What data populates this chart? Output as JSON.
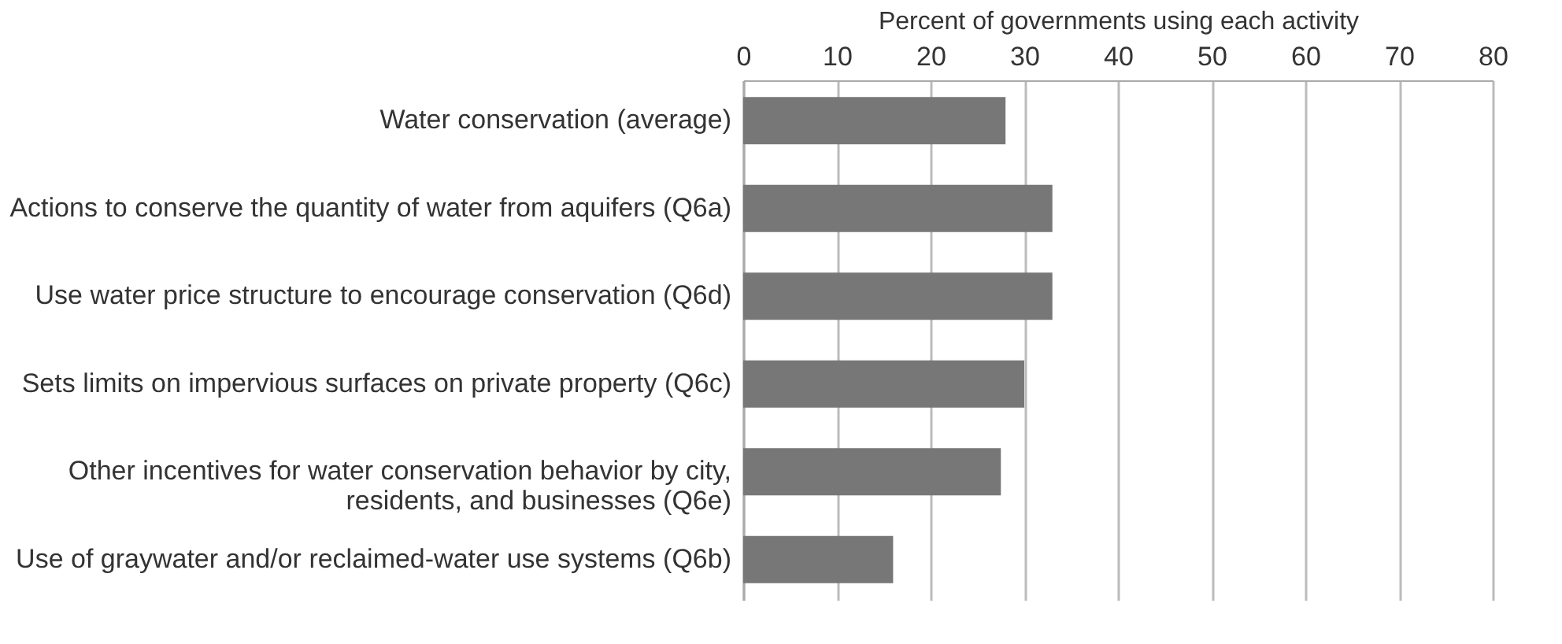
{
  "chart_data": {
    "type": "bar",
    "orientation": "horizontal",
    "xlabel": "Percent of governments using each activity",
    "categories": [
      "Water conservation (average)",
      "Actions to conserve the quantity of water from aquifers (Q6a)",
      "Use water price structure to encourage conservation (Q6d)",
      "Sets limits on impervious surfaces on private property (Q6c)",
      "Other incentives for water conservation behavior by city, residents, and businesses (Q6e)",
      "Use of graywater and/or reclaimed-water use systems (Q6b)"
    ],
    "values": [
      28,
      33,
      33,
      30,
      27.5,
      16
    ],
    "color": "#777777",
    "xlim": [
      0,
      80
    ],
    "xticks": [
      0,
      10,
      20,
      30,
      40,
      50,
      60,
      70,
      80
    ],
    "grid": "x"
  }
}
